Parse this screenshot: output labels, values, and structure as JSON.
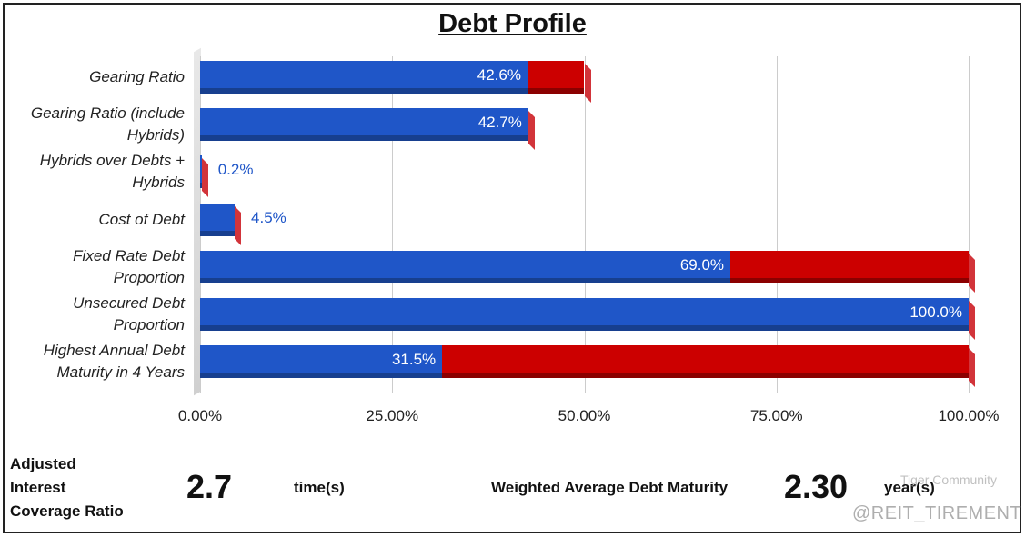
{
  "chart_data": {
    "type": "stacked-bar-horizontal",
    "title": "Debt Profile",
    "categories": [
      "Gearing Ratio",
      "Gearing Ratio (include Hybrids)",
      "Hybrids over Debts + Hybrids",
      "Cost of Debt",
      "Fixed Rate Debt Proportion",
      "Unsecured Debt Proportion",
      "Highest Annual Debt Maturity in 4 Years"
    ],
    "series": [
      {
        "color": "#1f56c8",
        "values": [
          42.6,
          42.7,
          0.2,
          4.5,
          69.0,
          100.0,
          31.5
        ],
        "value_labels": [
          "42.6%",
          "42.7%",
          "0.2%",
          "4.5%",
          "69.0%",
          "100.0%",
          "31.5%"
        ]
      },
      {
        "color": "#cc0000",
        "values": [
          7.4,
          0,
          0,
          0,
          31.0,
          0,
          68.5
        ]
      }
    ],
    "xlim": [
      0,
      100
    ],
    "xticks": [
      {
        "value": 0,
        "label": "0.00%"
      },
      {
        "value": 25,
        "label": "25.00%"
      },
      {
        "value": 50,
        "label": "50.00%"
      },
      {
        "value": 75,
        "label": "75.00%"
      },
      {
        "value": 100,
        "label": "100.00%"
      }
    ],
    "grid": true
  },
  "footer": {
    "metrics": [
      {
        "label": "Adjusted Interest Coverage Ratio",
        "value": "2.7",
        "unit": "time(s)"
      },
      {
        "label": "Weighted Average Debt Maturity",
        "value": "2.30",
        "unit": "year(s)"
      }
    ],
    "watermark": [
      "Tiger Community",
      "@REIT_TIREMENT"
    ]
  }
}
